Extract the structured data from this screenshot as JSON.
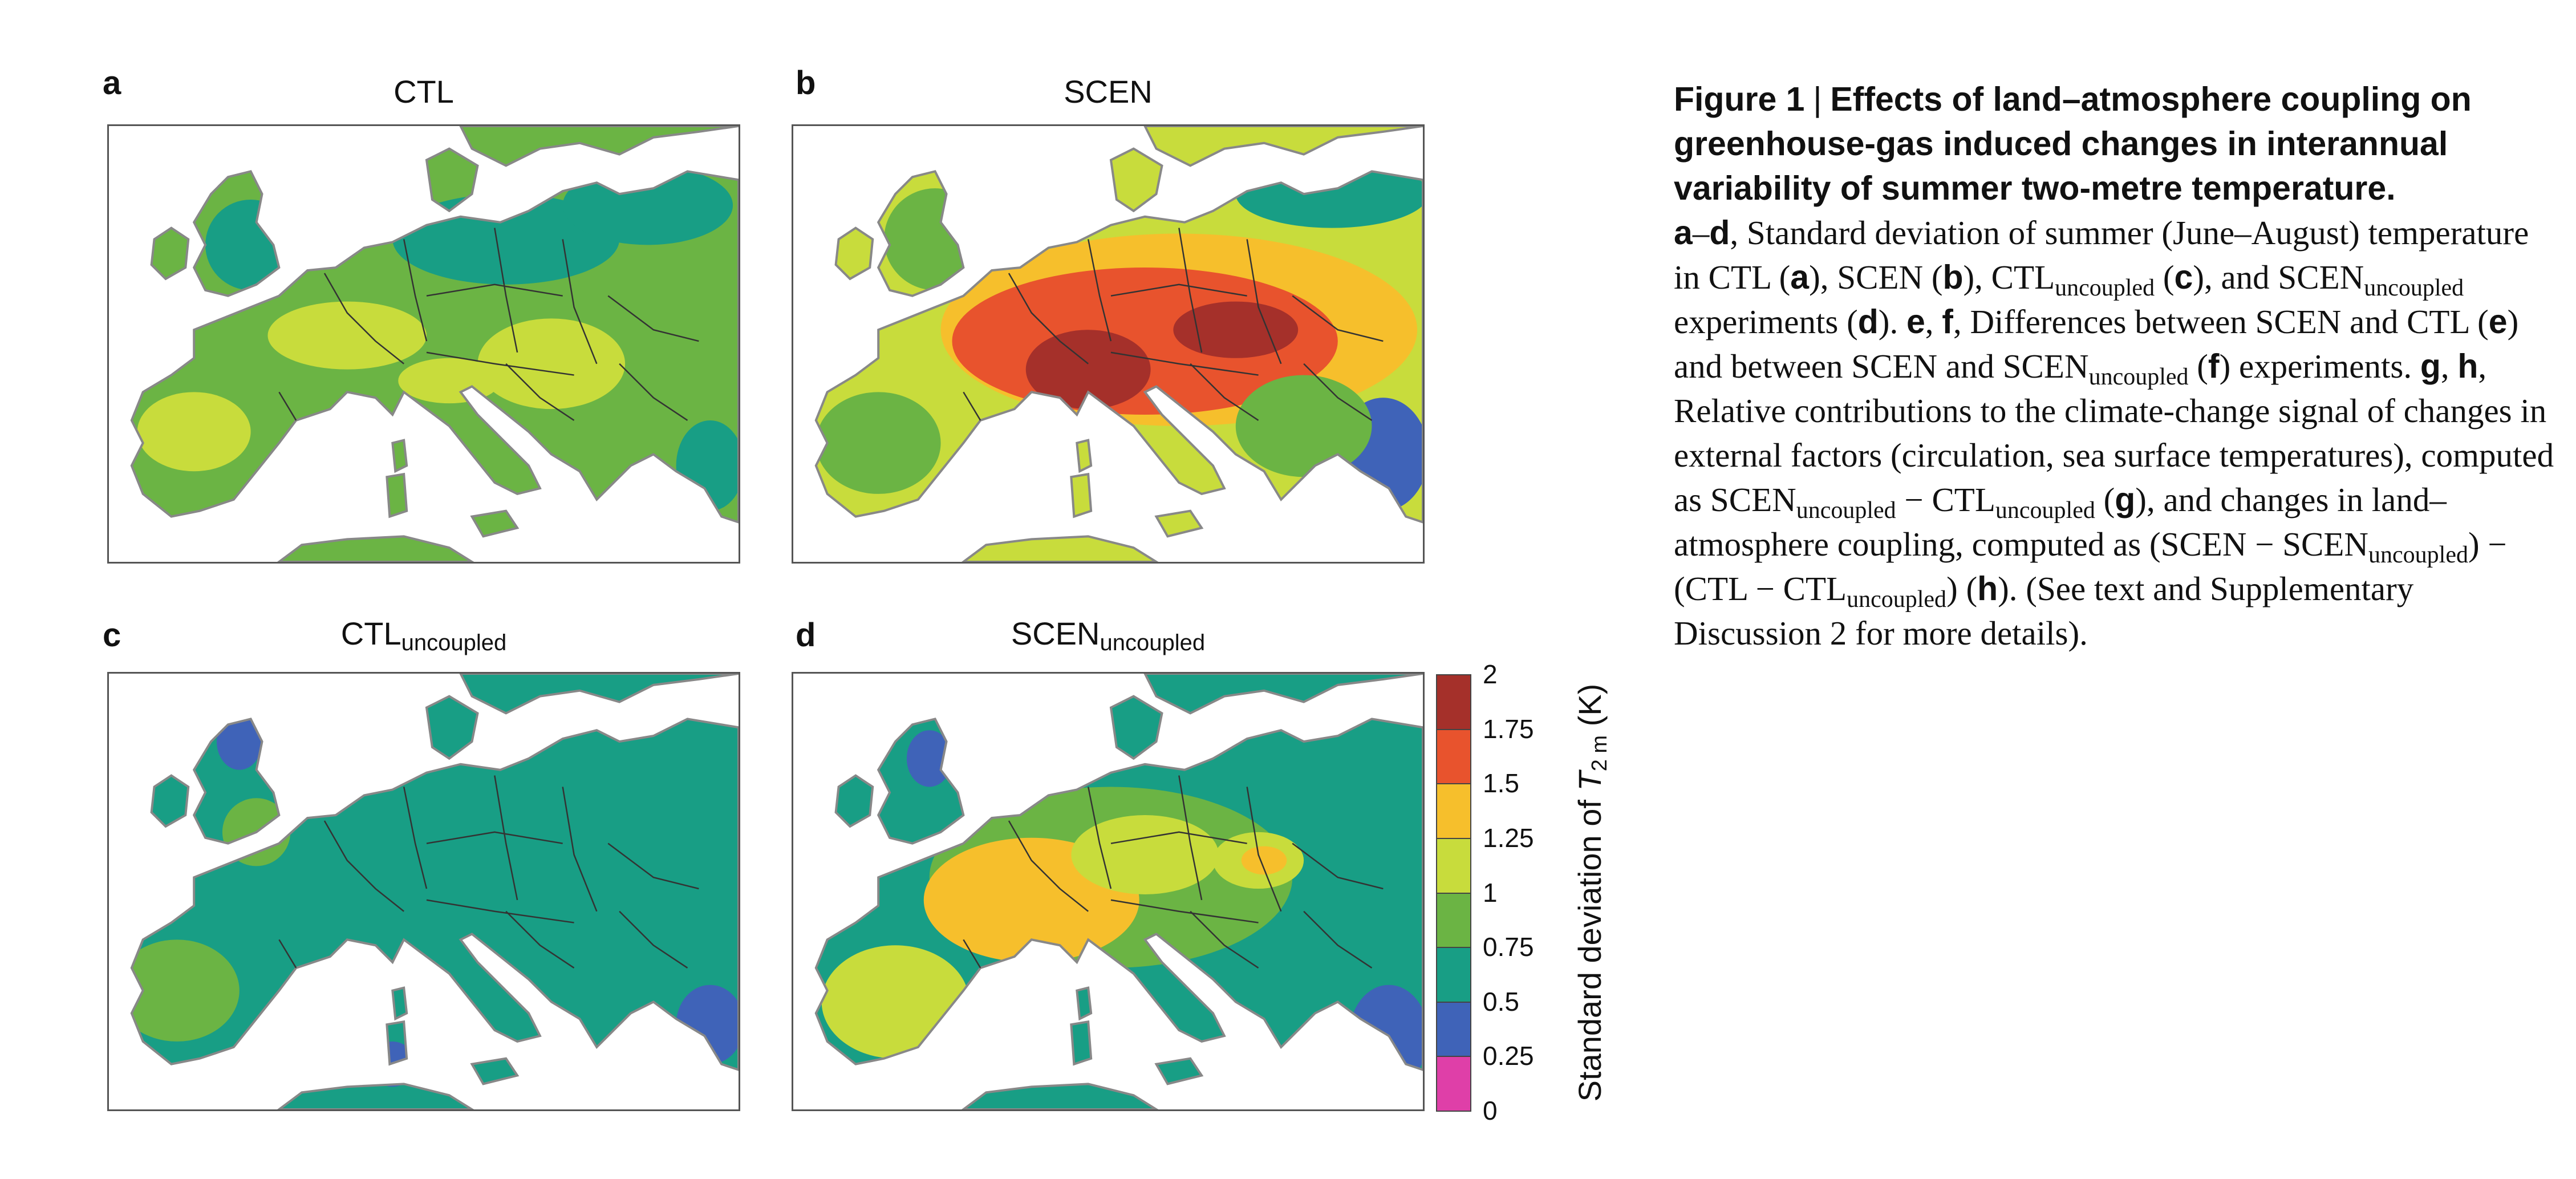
{
  "panels": [
    {
      "letter": "a",
      "title": "CTL",
      "title_sub": ""
    },
    {
      "letter": "b",
      "title": "SCEN",
      "title_sub": ""
    },
    {
      "letter": "c",
      "title": "CTL",
      "title_sub": "uncoupled"
    },
    {
      "letter": "d",
      "title": "SCEN",
      "title_sub": "uncoupled"
    }
  ],
  "colorbar": {
    "ticks": [
      "2",
      "1.75",
      "1.5",
      "1.25",
      "1",
      "0.75",
      "0.5",
      "0.25",
      "0"
    ],
    "colors": [
      "#a5302a",
      "#e8532d",
      "#f6bf2c",
      "#c8dc3c",
      "#6bb444",
      "#189e85",
      "#3f63b8",
      "#df3fa8"
    ],
    "label_prefix": "Standard deviation of ",
    "label_var": "T",
    "label_sub": "2 m",
    "label_suffix": " (K)"
  },
  "caption": {
    "fig_label": "Figure 1",
    "separator": "|",
    "heading": "Effects of land–atmosphere coupling on greenhouse-gas induced changes in interannual variability of summer two-metre temperature."
  },
  "map_colors": {
    "sea": "#ffffff",
    "c025": "#3f63b8",
    "c050": "#189e85",
    "c075": "#6bb444",
    "c100": "#c8dc3c",
    "c125": "#f6bf2c",
    "c150": "#e8532d",
    "c175": "#a5302a",
    "border": "#333333",
    "coast": "#888888"
  }
}
